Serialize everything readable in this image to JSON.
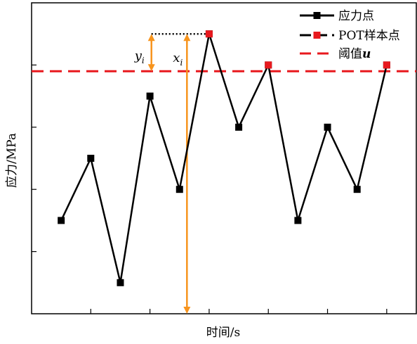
{
  "chart_data": {
    "type": "line",
    "xlabel": "时间/s",
    "ylabel": "应力/MPa",
    "x": [
      1,
      2,
      3,
      4,
      5,
      6,
      7,
      8,
      9,
      10,
      11,
      12
    ],
    "xlim": [
      0,
      13
    ],
    "ylim": [
      0,
      10
    ],
    "series": [
      {
        "name": "应力点",
        "values": [
          3,
          5,
          1,
          7,
          4,
          9,
          6,
          8,
          3,
          6,
          4,
          8
        ],
        "color": "#000000",
        "marker": "square"
      },
      {
        "name": "POT样本点",
        "x": [
          6,
          8,
          12
        ],
        "values": [
          9,
          8,
          8
        ],
        "color": "#e8191e",
        "marker": "square",
        "line": "none"
      }
    ],
    "threshold": {
      "name": "阈值u",
      "value": 7.8,
      "color": "#e8191e",
      "style": "dashed"
    },
    "annotations": {
      "y_label": "y",
      "y_subscript": "i",
      "x_label": "x",
      "x_subscript": "i",
      "arrow_color": "#f7941d"
    },
    "legend": {
      "position": "top-right"
    },
    "grid": false
  }
}
